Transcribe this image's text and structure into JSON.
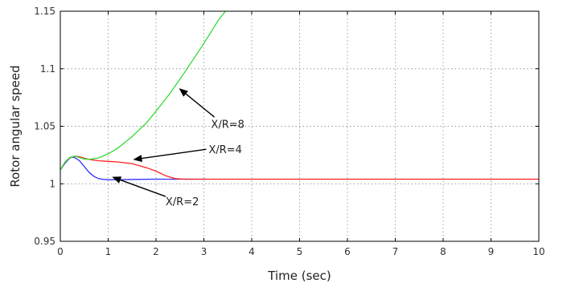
{
  "chart_data": {
    "type": "line",
    "title": "",
    "xlabel": "Time (sec)",
    "ylabel": "Rotor angular speed",
    "xlim": [
      0,
      10
    ],
    "ylim": [
      0.95,
      1.15
    ],
    "xticks": [
      0,
      1,
      2,
      3,
      4,
      5,
      6,
      7,
      8,
      9,
      10
    ],
    "xtick_labels": [
      "0",
      "1",
      "2",
      "3",
      "4",
      "5",
      "6",
      "7",
      "8",
      "9",
      "10"
    ],
    "yticks": [
      0.95,
      1,
      1.05,
      1.1,
      1.15
    ],
    "ytick_labels": [
      "0.95",
      "1",
      "1.05",
      "1.1",
      "1.15"
    ],
    "grid": true,
    "series": [
      {
        "color": "#3030ff",
        "x": [
          0,
          0.1,
          0.2,
          0.25,
          0.3,
          0.4,
          0.5,
          0.6,
          0.7,
          0.8,
          0.9,
          1.0,
          1.2,
          1.5,
          2.0,
          2.5,
          3.0,
          3.05
        ],
        "y": [
          1.012,
          1.018,
          1.0225,
          1.0232,
          1.0228,
          1.02,
          1.015,
          1.01,
          1.0065,
          1.0045,
          1.0038,
          1.0035,
          1.0035,
          1.0038,
          1.004,
          1.004,
          1.004,
          1.004
        ]
      },
      {
        "color": "#ff2020",
        "x": [
          0,
          0.1,
          0.2,
          0.3,
          0.4,
          0.5,
          0.6,
          0.8,
          1.0,
          1.2,
          1.5,
          1.8,
          2.0,
          2.2,
          2.4,
          2.6,
          3.0,
          4.0,
          6.0,
          8.0,
          10.0
        ],
        "y": [
          1.012,
          1.019,
          1.0228,
          1.024,
          1.0235,
          1.0222,
          1.0212,
          1.02,
          1.0195,
          1.019,
          1.0175,
          1.014,
          1.011,
          1.007,
          1.0045,
          1.004,
          1.004,
          1.004,
          1.004,
          1.004,
          1.004
        ]
      },
      {
        "color": "#33dd33",
        "x": [
          0,
          0.1,
          0.2,
          0.3,
          0.4,
          0.5,
          0.6,
          0.8,
          1.0,
          1.2,
          1.5,
          1.8,
          2.0,
          2.3,
          2.6,
          3.0,
          3.3,
          3.45
        ],
        "y": [
          1.012,
          1.019,
          1.0228,
          1.024,
          1.0228,
          1.0215,
          1.0212,
          1.0225,
          1.026,
          1.031,
          1.041,
          1.053,
          1.063,
          1.079,
          1.097,
          1.122,
          1.142,
          1.15
        ]
      }
    ],
    "annotations": [
      {
        "text": "X/R=8",
        "text_x": 3.15,
        "text_y": 1.052,
        "tip_x": 2.48,
        "tip_y": 1.083,
        "tail_x": 3.22,
        "tail_y": 1.058
      },
      {
        "text": "X/R=4",
        "text_x": 3.1,
        "text_y": 1.03,
        "tip_x": 1.52,
        "tip_y": 1.021,
        "tail_x": 3.05,
        "tail_y": 1.03
      },
      {
        "text": "X/R=2",
        "text_x": 2.2,
        "text_y": 0.985,
        "tip_x": 1.08,
        "tip_y": 1.006,
        "tail_x": 2.2,
        "tail_y": 0.989
      }
    ]
  }
}
